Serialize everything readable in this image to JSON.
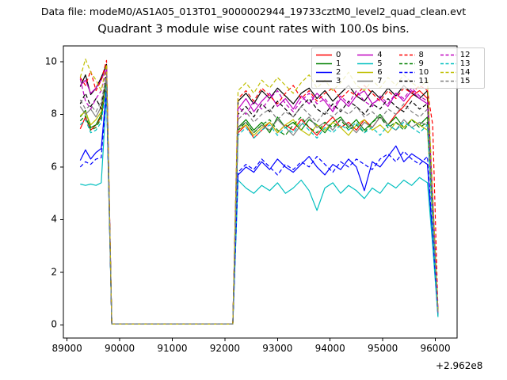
{
  "header": {
    "datafile_label": "Data file: modeM0/AS1A05_013T01_9000002944_19733cztM0_level2_quad_clean.evt"
  },
  "chart_data": {
    "type": "line",
    "title": "Quadrant 3 module wise count rates with 100.0s bins.",
    "xlabel": "",
    "ylabel": "",
    "x_offset_label": "+2.962e8",
    "xlim": [
      88930,
      96413
    ],
    "ylim": [
      -0.5,
      10.6
    ],
    "xticks": [
      89000,
      90000,
      91000,
      92000,
      93000,
      94000,
      95000,
      96000
    ],
    "yticks": [
      0,
      2,
      4,
      6,
      8,
      10
    ],
    "grid": false,
    "legend_position": "upper right",
    "x": [
      89250,
      89350,
      89450,
      89550,
      89650,
      89750,
      89850,
      92150,
      92250,
      92400,
      92550,
      92700,
      92850,
      93000,
      93150,
      93300,
      93450,
      93600,
      93750,
      93900,
      94050,
      94200,
      94350,
      94500,
      94650,
      94800,
      94950,
      95100,
      95250,
      95400,
      95550,
      95700,
      95850,
      95950,
      96050
    ],
    "series": [
      {
        "name": "0",
        "color": "#ff0000",
        "dash": false,
        "values": [
          7.45,
          7.9,
          7.4,
          7.6,
          7.9,
          9.2,
          0.03,
          0.03,
          7.3,
          7.6,
          7.1,
          7.4,
          7.7,
          7.3,
          7.6,
          7.4,
          7.8,
          7.5,
          7.2,
          7.6,
          7.9,
          7.5,
          7.7,
          7.4,
          7.8,
          7.5,
          7.9,
          7.6,
          8.0,
          8.3,
          8.7,
          8.9,
          8.6,
          4.5,
          0.4
        ]
      },
      {
        "name": "1",
        "color": "#008000",
        "dash": false,
        "values": [
          7.9,
          8.15,
          7.5,
          7.6,
          8.0,
          9.3,
          0.03,
          0.03,
          7.5,
          7.8,
          7.4,
          7.7,
          7.3,
          7.9,
          7.5,
          7.7,
          7.4,
          7.8,
          7.6,
          7.3,
          7.7,
          7.9,
          7.5,
          7.8,
          7.4,
          7.7,
          8.0,
          7.6,
          7.9,
          7.5,
          7.8,
          7.6,
          7.9,
          4.2,
          0.4
        ]
      },
      {
        "name": "2",
        "color": "#0000ff",
        "dash": false,
        "values": [
          6.25,
          6.65,
          6.3,
          6.55,
          6.7,
          9.0,
          0.03,
          0.03,
          5.7,
          6.0,
          5.8,
          6.2,
          5.9,
          6.3,
          6.0,
          5.8,
          6.1,
          6.4,
          6.0,
          5.7,
          6.1,
          5.9,
          6.3,
          6.0,
          5.1,
          6.2,
          6.0,
          6.4,
          6.8,
          6.2,
          6.5,
          6.3,
          6.1,
          3.2,
          0.35
        ]
      },
      {
        "name": "3",
        "color": "#000000",
        "dash": false,
        "values": [
          9.05,
          9.5,
          8.75,
          9.0,
          9.4,
          9.9,
          0.03,
          0.03,
          8.5,
          8.8,
          8.4,
          8.9,
          8.6,
          9.0,
          8.7,
          8.4,
          8.8,
          9.0,
          8.6,
          8.9,
          8.5,
          8.8,
          9.1,
          8.7,
          8.5,
          8.9,
          8.6,
          9.0,
          8.7,
          9.1,
          8.8,
          8.6,
          8.9,
          4.8,
          0.45
        ]
      },
      {
        "name": "4",
        "color": "#bf00bf",
        "dash": false,
        "values": [
          9.1,
          9.3,
          8.8,
          9.0,
          9.3,
          9.8,
          0.03,
          0.03,
          8.2,
          8.6,
          8.1,
          8.5,
          8.8,
          8.3,
          8.6,
          8.2,
          8.7,
          8.4,
          8.8,
          8.5,
          8.1,
          8.6,
          8.3,
          8.7,
          8.9,
          8.4,
          8.6,
          8.3,
          8.8,
          8.5,
          8.9,
          8.6,
          8.4,
          4.6,
          0.4
        ]
      },
      {
        "name": "5",
        "color": "#00bfbf",
        "dash": false,
        "values": [
          5.35,
          5.3,
          5.35,
          5.3,
          5.4,
          8.8,
          0.03,
          0.03,
          5.5,
          5.2,
          5.0,
          5.3,
          5.1,
          5.4,
          5.0,
          5.2,
          5.5,
          5.1,
          4.35,
          5.2,
          5.4,
          5.0,
          5.3,
          5.1,
          4.8,
          5.2,
          5.0,
          5.4,
          5.2,
          5.5,
          5.3,
          5.6,
          5.4,
          3.0,
          0.3
        ]
      },
      {
        "name": "6",
        "color": "#bfbf00",
        "dash": false,
        "values": [
          7.95,
          8.1,
          7.6,
          7.8,
          8.1,
          9.3,
          0.03,
          0.03,
          7.4,
          7.6,
          7.2,
          7.5,
          7.7,
          7.3,
          7.6,
          7.8,
          7.4,
          7.2,
          7.6,
          7.4,
          7.7,
          7.5,
          7.2,
          7.6,
          7.8,
          7.4,
          7.6,
          7.3,
          7.7,
          7.5,
          7.8,
          7.6,
          7.4,
          4.0,
          0.4
        ]
      },
      {
        "name": "7",
        "color": "#7f7f7f",
        "dash": false,
        "values": [
          8.3,
          8.0,
          8.2,
          7.9,
          8.3,
          9.4,
          0.03,
          0.03,
          7.5,
          7.7,
          7.3,
          7.6,
          7.4,
          7.8,
          7.5,
          7.2,
          7.6,
          7.9,
          7.5,
          7.7,
          7.4,
          7.8,
          7.6,
          7.3,
          7.7,
          7.5,
          7.9,
          7.6,
          7.4,
          7.8,
          7.5,
          7.7,
          7.6,
          4.3,
          0.4
        ]
      },
      {
        "name": "8",
        "color": "#ff0000",
        "dash": true,
        "values": [
          9.4,
          9.1,
          9.65,
          8.9,
          9.3,
          10.05,
          0.03,
          0.03,
          8.6,
          8.9,
          8.5,
          9.0,
          8.7,
          8.4,
          8.8,
          9.1,
          8.6,
          8.9,
          8.5,
          8.8,
          9.0,
          8.6,
          8.9,
          8.7,
          9.1,
          8.8,
          8.5,
          8.9,
          8.6,
          9.0,
          8.8,
          9.1,
          8.9,
          7.6,
          0.5
        ]
      },
      {
        "name": "9",
        "color": "#008000",
        "dash": true,
        "values": [
          7.75,
          7.95,
          7.4,
          7.5,
          7.85,
          9.25,
          0.03,
          0.03,
          7.4,
          7.7,
          7.3,
          7.6,
          7.8,
          7.4,
          7.2,
          7.6,
          7.9,
          7.5,
          7.3,
          7.7,
          7.5,
          7.8,
          7.4,
          7.6,
          7.3,
          7.7,
          7.9,
          7.5,
          7.7,
          7.4,
          7.8,
          7.5,
          7.7,
          4.1,
          0.4
        ]
      },
      {
        "name": "10",
        "color": "#0000ff",
        "dash": true,
        "values": [
          6.0,
          6.2,
          6.1,
          6.3,
          6.35,
          8.9,
          0.03,
          0.03,
          5.8,
          6.1,
          5.9,
          6.3,
          6.0,
          5.7,
          6.1,
          5.9,
          6.2,
          6.0,
          6.4,
          6.1,
          5.8,
          6.2,
          6.0,
          6.3,
          6.1,
          5.9,
          6.3,
          6.5,
          6.2,
          6.6,
          6.3,
          6.1,
          6.4,
          3.4,
          0.35
        ]
      },
      {
        "name": "11",
        "color": "#000000",
        "dash": true,
        "values": [
          8.4,
          8.8,
          8.3,
          8.6,
          8.2,
          9.6,
          0.03,
          0.03,
          8.0,
          8.3,
          7.9,
          8.4,
          8.1,
          8.5,
          8.2,
          7.9,
          8.3,
          8.6,
          8.2,
          8.0,
          8.4,
          8.1,
          8.5,
          8.3,
          8.0,
          8.4,
          8.2,
          8.6,
          8.3,
          8.1,
          8.5,
          8.2,
          8.4,
          4.7,
          0.45
        ]
      },
      {
        "name": "12",
        "color": "#bf00bf",
        "dash": true,
        "values": [
          9.35,
          8.5,
          8.2,
          8.6,
          8.9,
          9.7,
          0.03,
          0.03,
          8.3,
          8.0,
          8.5,
          8.2,
          8.6,
          8.9,
          8.4,
          8.1,
          8.5,
          8.8,
          8.4,
          8.6,
          8.2,
          8.7,
          8.4,
          8.9,
          8.5,
          8.3,
          8.7,
          8.4,
          8.8,
          8.6,
          9.0,
          8.7,
          8.5,
          4.9,
          0.45
        ]
      },
      {
        "name": "13",
        "color": "#00bfbf",
        "dash": true,
        "values": [
          7.6,
          7.8,
          7.3,
          7.4,
          7.7,
          9.1,
          0.03,
          0.03,
          7.2,
          7.5,
          7.1,
          7.4,
          7.6,
          7.2,
          7.5,
          7.3,
          7.7,
          7.4,
          7.1,
          7.5,
          7.3,
          7.6,
          7.4,
          7.7,
          7.3,
          7.5,
          7.2,
          7.6,
          7.4,
          7.7,
          7.5,
          7.3,
          7.6,
          3.9,
          0.35
        ]
      },
      {
        "name": "14",
        "color": "#bfbf00",
        "dash": true,
        "values": [
          9.4,
          10.1,
          9.6,
          9.3,
          8.9,
          9.9,
          0.03,
          0.03,
          8.9,
          9.2,
          8.8,
          9.3,
          9.0,
          9.4,
          9.1,
          8.8,
          9.2,
          9.5,
          9.0,
          9.3,
          8.9,
          9.2,
          9.6,
          9.1,
          8.9,
          9.3,
          9.0,
          9.4,
          9.1,
          9.5,
          9.2,
          9.0,
          9.3,
          5.0,
          0.5
        ]
      },
      {
        "name": "15",
        "color": "#7f7f7f",
        "dash": true,
        "values": [
          8.55,
          8.2,
          8.35,
          8.1,
          8.5,
          9.5,
          0.03,
          0.03,
          7.8,
          8.1,
          7.7,
          8.0,
          8.2,
          7.8,
          8.1,
          7.9,
          8.3,
          8.0,
          7.7,
          8.1,
          7.9,
          8.2,
          8.0,
          8.3,
          7.9,
          8.1,
          7.8,
          8.2,
          8.0,
          8.4,
          8.1,
          7.9,
          8.2,
          4.4,
          0.4
        ]
      }
    ]
  }
}
